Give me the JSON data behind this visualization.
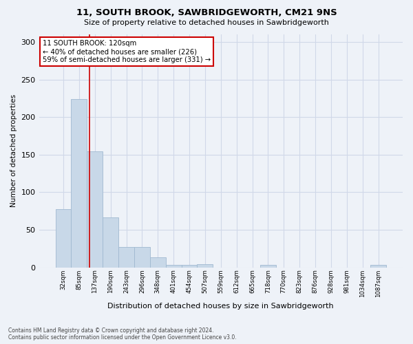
{
  "title1": "11, SOUTH BROOK, SAWBRIDGEWORTH, CM21 9NS",
  "title2": "Size of property relative to detached houses in Sawbridgeworth",
  "xlabel": "Distribution of detached houses by size in Sawbridgeworth",
  "ylabel": "Number of detached properties",
  "categories": [
    "32sqm",
    "85sqm",
    "137sqm",
    "190sqm",
    "243sqm",
    "296sqm",
    "348sqm",
    "401sqm",
    "454sqm",
    "507sqm",
    "559sqm",
    "612sqm",
    "665sqm",
    "718sqm",
    "770sqm",
    "823sqm",
    "876sqm",
    "928sqm",
    "981sqm",
    "1034sqm",
    "1087sqm"
  ],
  "values": [
    77,
    224,
    154,
    66,
    27,
    27,
    13,
    3,
    3,
    4,
    0,
    0,
    0,
    3,
    0,
    0,
    0,
    0,
    0,
    0,
    3
  ],
  "bar_color": "#c8d8e8",
  "bar_edge_color": "#a0b8d0",
  "annotation_text": "11 SOUTH BROOK: 120sqm\n← 40% of detached houses are smaller (226)\n59% of semi-detached houses are larger (331) →",
  "annotation_box_color": "#ffffff",
  "annotation_box_edge_color": "#cc0000",
  "vline_color": "#cc0000",
  "grid_color": "#d0d8e8",
  "background_color": "#eef2f8",
  "footer": "Contains HM Land Registry data © Crown copyright and database right 2024.\nContains public sector information licensed under the Open Government Licence v3.0.",
  "ylim": [
    0,
    310
  ],
  "yticks": [
    0,
    50,
    100,
    150,
    200,
    250,
    300
  ]
}
